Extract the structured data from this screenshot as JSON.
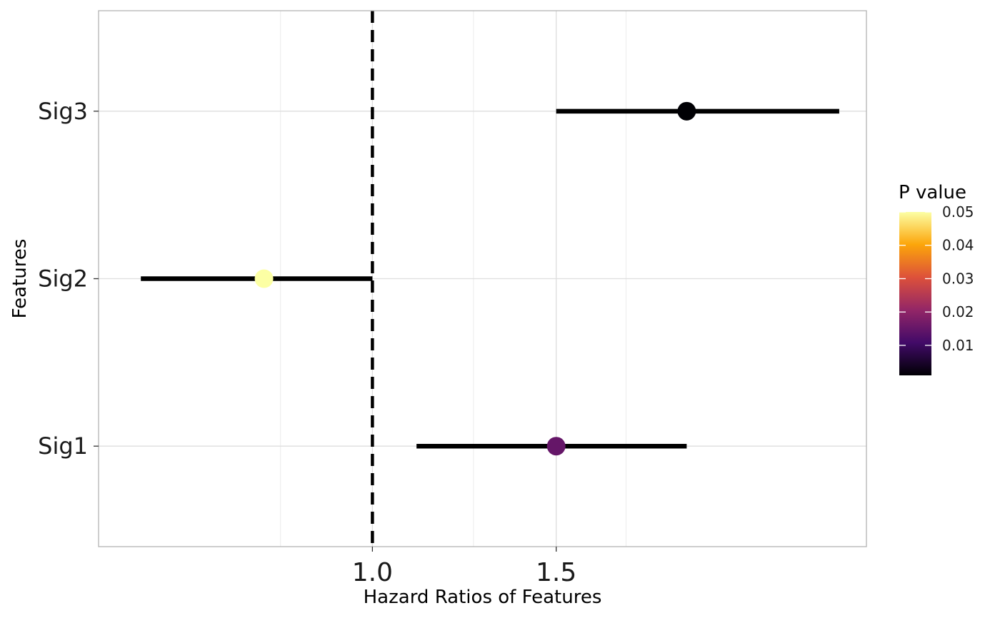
{
  "chart_data": {
    "type": "forest",
    "xlabel": "Hazard Ratios of Features",
    "ylabel": "Features",
    "x_ticks": [
      1.0,
      1.5
    ],
    "x_tick_labels": [
      "1.0",
      "1.5"
    ],
    "x_minor_gridlines": [
      0.75,
      1.275,
      1.69
    ],
    "xlim": [
      0.255,
      2.344
    ],
    "reference_line": 1.0,
    "categories": [
      "Sig1",
      "Sig2",
      "Sig3"
    ],
    "points": [
      {
        "feature": "Sig1",
        "hr": 1.5,
        "lower": 1.12,
        "upper": 1.855,
        "p": 0.015
      },
      {
        "feature": "Sig2",
        "hr": 0.705,
        "lower": 0.37,
        "upper": 1.0,
        "p": 0.05
      },
      {
        "feature": "Sig3",
        "hr": 1.855,
        "lower": 1.5,
        "upper": 2.27,
        "p": 0.001
      }
    ],
    "legend": {
      "title": "P value",
      "position": "right",
      "ticks": [
        0.01,
        0.02,
        0.03,
        0.04,
        0.05
      ],
      "tick_labels": [
        "0.01",
        "0.02",
        "0.03",
        "0.04",
        "0.05"
      ],
      "range": [
        0.001,
        0.05
      ],
      "palette": [
        "#000004",
        "#420a68",
        "#932667",
        "#dd513a",
        "#fca50a",
        "#fcffa4"
      ]
    },
    "grid": true,
    "theme": "light"
  }
}
